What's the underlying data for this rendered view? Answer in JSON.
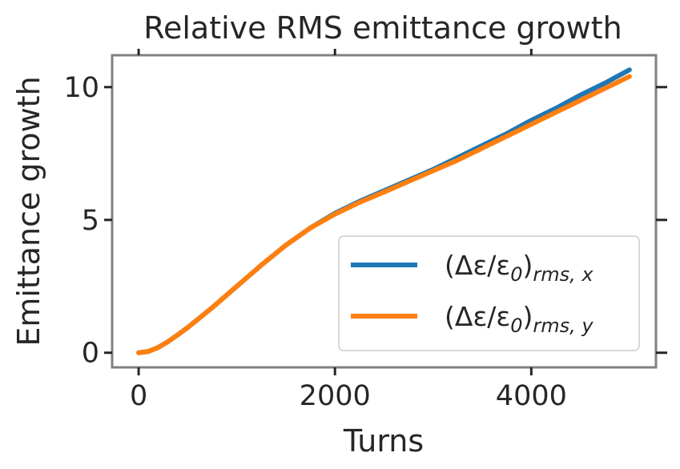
{
  "chart_data": {
    "type": "line",
    "title": "Relative RMS emittance growth",
    "xlabel": "Turns",
    "ylabel": "Emittance growth",
    "xlim": [
      -270,
      5270
    ],
    "ylim": [
      -0.55,
      11.2
    ],
    "xticks": [
      0,
      2000,
      4000
    ],
    "yticks": [
      0,
      5,
      10
    ],
    "grid": false,
    "legend_position": "lower-right",
    "series": [
      {
        "name": "(Δε/ε0)rms,x",
        "legend_main": "(Δε/ε",
        "legend_sub0": "0",
        "legend_close": ")",
        "legend_sub": "rms, x",
        "color": "#1f77b4",
        "x": [
          0,
          100,
          200,
          300,
          400,
          500,
          750,
          1000,
          1250,
          1500,
          1750,
          2000,
          2250,
          2500,
          2750,
          3000,
          3250,
          3500,
          3750,
          4000,
          4250,
          4500,
          4750,
          5000
        ],
        "y": [
          0.0,
          0.05,
          0.2,
          0.42,
          0.68,
          0.95,
          1.7,
          2.5,
          3.3,
          4.05,
          4.7,
          5.25,
          5.7,
          6.1,
          6.5,
          6.9,
          7.35,
          7.8,
          8.25,
          8.75,
          9.2,
          9.7,
          10.15,
          10.65
        ]
      },
      {
        "name": "(Δε/ε0)rms,y",
        "legend_main": "(Δε/ε",
        "legend_sub0": "0",
        "legend_close": ")",
        "legend_sub": "rms, y",
        "color": "#ff7f0e",
        "x": [
          0,
          100,
          200,
          300,
          400,
          500,
          750,
          1000,
          1250,
          1500,
          1750,
          2000,
          2250,
          2500,
          2750,
          3000,
          3250,
          3500,
          3750,
          4000,
          4250,
          4500,
          4750,
          5000
        ],
        "y": [
          0.0,
          0.05,
          0.2,
          0.42,
          0.68,
          0.95,
          1.7,
          2.5,
          3.3,
          4.05,
          4.7,
          5.22,
          5.66,
          6.05,
          6.45,
          6.85,
          7.25,
          7.7,
          8.15,
          8.6,
          9.05,
          9.5,
          9.95,
          10.4
        ]
      }
    ]
  }
}
